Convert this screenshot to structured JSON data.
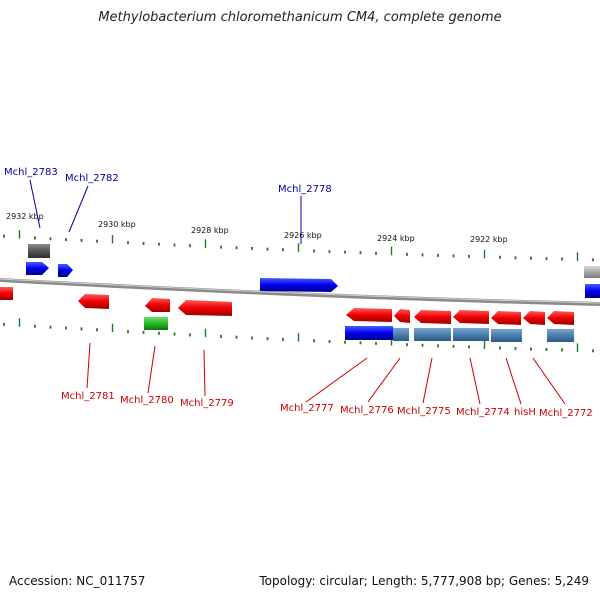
{
  "title": "Methylobacterium chloromethanicum CM4, complete genome",
  "footer": {
    "accession": "Accession: NC_011757",
    "summary": "Topology: circular; Length: 5,777,908 bp; Genes: 5,249"
  },
  "scale_labels": [
    "2932 kbp",
    "2930 kbp",
    "2928 kbp",
    "2926 kbp",
    "2924 kbp",
    "2922 kbp"
  ],
  "gene_labels_top": [
    "Mchl_2783",
    "Mchl_2782",
    "Mchl_2778"
  ],
  "gene_labels_bottom": [
    "Mchl_2781",
    "Mchl_2780",
    "Mchl_2779",
    "Mchl_2777",
    "Mchl_2776",
    "Mchl_2775",
    "Mchl_2774",
    "hisH",
    "Mchl_2772"
  ],
  "colors": {
    "forward_cds": "#0a0aee",
    "reverse_cds": "#ee1010",
    "rna": "#22bb22",
    "pseudo_top": "#555555",
    "pseudo_right": "#aaaaaa",
    "feature_blue": "#4a7fb0",
    "backbone": "#888888",
    "ticks": "#1f7a1f",
    "label_forward": "#0000aa",
    "label_reverse": "#cc0000"
  }
}
